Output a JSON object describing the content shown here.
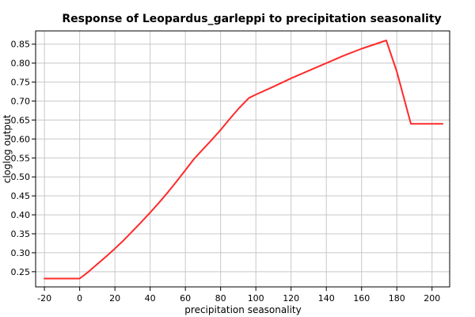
{
  "chart_data": {
    "type": "line",
    "title": "Response of Leopardus_garleppi to precipitation seasonality",
    "xlabel": "precipitation seasonality",
    "ylabel": "cloglog output",
    "xlim": [
      -25,
      210
    ],
    "ylim": [
      0.21,
      0.885
    ],
    "x_ticks": [
      -20,
      0,
      20,
      40,
      60,
      80,
      100,
      120,
      140,
      160,
      180,
      200
    ],
    "x_tick_labels": [
      "-20",
      "0",
      "20",
      "40",
      "60",
      "80",
      "100",
      "120",
      "140",
      "160",
      "180",
      "200"
    ],
    "y_ticks": [
      0.25,
      0.3,
      0.35,
      0.4,
      0.45,
      0.5,
      0.55,
      0.6,
      0.65,
      0.7,
      0.75,
      0.8,
      0.85
    ],
    "y_tick_labels": [
      "0.25",
      "0.30",
      "0.35",
      "0.40",
      "0.45",
      "0.50",
      "0.55",
      "0.60",
      "0.65",
      "0.70",
      "0.75",
      "0.80",
      "0.85"
    ],
    "grid": true,
    "legend": "none",
    "colors": {
      "line": "#ff2a2a",
      "grid": "#c8c8c8",
      "axes": "#000000",
      "background": "#ffffff"
    },
    "series": [
      {
        "x": [
          -20,
          0,
          5,
          10,
          15,
          20,
          25,
          30,
          35,
          40,
          45,
          50,
          55,
          60,
          65,
          70,
          75,
          80,
          85,
          90,
          96,
          100,
          110,
          120,
          130,
          140,
          150,
          160,
          174,
          180,
          188,
          206
        ],
        "y": [
          0.232,
          0.232,
          0.25,
          0.27,
          0.29,
          0.311,
          0.333,
          0.357,
          0.381,
          0.406,
          0.432,
          0.459,
          0.488,
          0.518,
          0.548,
          0.573,
          0.598,
          0.624,
          0.652,
          0.679,
          0.708,
          0.717,
          0.738,
          0.76,
          0.78,
          0.8,
          0.82,
          0.838,
          0.86,
          0.778,
          0.64,
          0.64
        ]
      }
    ]
  }
}
